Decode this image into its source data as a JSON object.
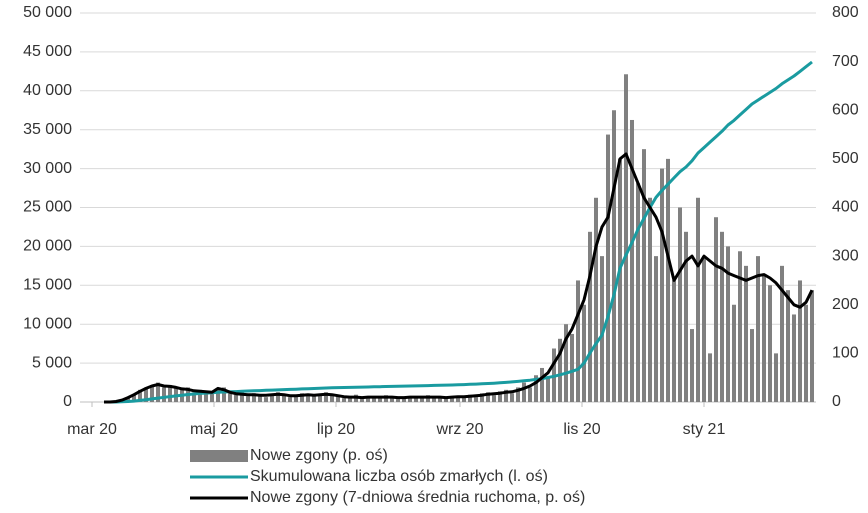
{
  "chart_data": {
    "type": "combo",
    "x": [
      6,
      9,
      12,
      15,
      18,
      21,
      24,
      27,
      30,
      33,
      36,
      39,
      42,
      45,
      48,
      51,
      54,
      57,
      60,
      63,
      66,
      69,
      72,
      75,
      78,
      81,
      84,
      87,
      90,
      93,
      96,
      99,
      102,
      105,
      108,
      111,
      114,
      117,
      120,
      123,
      126,
      129,
      132,
      135,
      138,
      141,
      144,
      147,
      150,
      153,
      156,
      159,
      162,
      165,
      168,
      171,
      174,
      177,
      180,
      183,
      186,
      189,
      192,
      195,
      198,
      201,
      204,
      207,
      210,
      213,
      216,
      219,
      222,
      225,
      228,
      231,
      234,
      237,
      240,
      243,
      246,
      249,
      252,
      255,
      258,
      261,
      264,
      267,
      270,
      273,
      276,
      279,
      282,
      285,
      288,
      291,
      294,
      297,
      300,
      303,
      306,
      309,
      312,
      315,
      318,
      321,
      324,
      327,
      330,
      333,
      336,
      339,
      342,
      345,
      348,
      351,
      354,
      357,
      360
    ],
    "xlim": [
      -6,
      362
    ],
    "xticks": [
      {
        "value": 0,
        "label": "mar 20"
      },
      {
        "value": 61,
        "label": "maj 20"
      },
      {
        "value": 122,
        "label": "lip 20"
      },
      {
        "value": 184,
        "label": "wrz 20"
      },
      {
        "value": 245,
        "label": "lis 20"
      },
      {
        "value": 306,
        "label": "sty 21"
      }
    ],
    "ylim": [
      0,
      50000
    ],
    "yticks": [
      0,
      {
        "value": 5000,
        "label": "5 000"
      },
      {
        "value": 10000,
        "label": "10 000"
      },
      {
        "value": 15000,
        "label": "15 000"
      },
      {
        "value": 20000,
        "label": "20 000"
      },
      {
        "value": 25000,
        "label": "25 000"
      },
      {
        "value": 30000,
        "label": "30 000"
      },
      {
        "value": 35000,
        "label": "35 000"
      },
      {
        "value": 40000,
        "label": "40 000"
      },
      {
        "value": 45000,
        "label": "45 000"
      },
      {
        "value": 50000,
        "label": "50 000"
      }
    ],
    "y2lim": [
      0,
      800
    ],
    "y2ticks": [
      0,
      100,
      200,
      300,
      400,
      500,
      600,
      700,
      800
    ],
    "grid": true,
    "series": [
      {
        "name": "Nowe zgony (p. oś)",
        "type": "bar",
        "axis": "y2",
        "color": "#808080",
        "values": [
          0,
          0,
          2,
          5,
          10,
          15,
          25,
          30,
          35,
          40,
          30,
          35,
          30,
          25,
          30,
          20,
          25,
          22,
          20,
          25,
          30,
          18,
          15,
          20,
          12,
          18,
          15,
          10,
          16,
          20,
          14,
          10,
          12,
          18,
          15,
          12,
          16,
          20,
          14,
          12,
          8,
          10,
          15,
          6,
          10,
          12,
          8,
          14,
          10,
          6,
          9,
          12,
          8,
          10,
          14,
          9,
          11,
          7,
          10,
          12,
          12,
          15,
          10,
          18,
          20,
          14,
          22,
          25,
          18,
          30,
          40,
          30,
          55,
          70,
          50,
          110,
          130,
          160,
          140,
          250,
          200,
          350,
          420,
          300,
          550,
          600,
          500,
          674,
          580,
          450,
          520,
          420,
          300,
          480,
          500,
          250,
          400,
          350,
          150,
          420,
          300,
          100,
          380,
          350,
          320,
          200,
          310,
          280,
          150,
          300,
          260,
          240,
          100,
          280,
          230,
          180,
          250,
          200,
          230
        ]
      },
      {
        "name": "Skumulowana liczba osób zmarłych (l. oś)",
        "type": "line",
        "axis": "y",
        "color": "#1a9ba0",
        "values": [
          0,
          0,
          5,
          20,
          60,
          120,
          200,
          300,
          400,
          500,
          600,
          700,
          790,
          880,
          960,
          1030,
          1100,
          1150,
          1200,
          1250,
          1280,
          1310,
          1340,
          1380,
          1410,
          1440,
          1470,
          1500,
          1530,
          1560,
          1590,
          1620,
          1650,
          1680,
          1710,
          1740,
          1770,
          1800,
          1830,
          1850,
          1860,
          1880,
          1900,
          1920,
          1930,
          1950,
          1970,
          1990,
          2000,
          2020,
          2040,
          2060,
          2070,
          2090,
          2110,
          2130,
          2150,
          2170,
          2190,
          2210,
          2240,
          2270,
          2300,
          2340,
          2380,
          2420,
          2470,
          2520,
          2580,
          2650,
          2720,
          2800,
          2900,
          3000,
          3150,
          3300,
          3500,
          3700,
          3950,
          4200,
          5000,
          6300,
          7500,
          8600,
          11000,
          13800,
          17200,
          18900,
          20500,
          22200,
          23600,
          25000,
          26300,
          27200,
          28000,
          28800,
          29600,
          30200,
          31000,
          32000,
          32700,
          33400,
          34100,
          34800,
          35600,
          36200,
          36900,
          37600,
          38300,
          38800,
          39300,
          39800,
          40300,
          40900,
          41400,
          41900,
          42500,
          43100,
          43700
        ]
      },
      {
        "name": "Nowe zgony (7-dniowa średnia ruchoma, p. oś)",
        "type": "line",
        "axis": "y2",
        "color": "#000000",
        "values": [
          0,
          0,
          1,
          4,
          9,
          15,
          22,
          28,
          33,
          36,
          33,
          32,
          30,
          27,
          26,
          23,
          22,
          21,
          20,
          28,
          25,
          20,
          17,
          16,
          15,
          15,
          14,
          14,
          15,
          16,
          15,
          13,
          13,
          14,
          15,
          14,
          15,
          16,
          15,
          13,
          11,
          10,
          10,
          9,
          10,
          10,
          10,
          10,
          10,
          9,
          9,
          10,
          10,
          10,
          10,
          10,
          10,
          9,
          10,
          11,
          11,
          12,
          13,
          14,
          16,
          17,
          18,
          20,
          21,
          24,
          28,
          33,
          40,
          50,
          60,
          80,
          100,
          130,
          150,
          180,
          210,
          260,
          320,
          360,
          380,
          440,
          500,
          510,
          480,
          450,
          420,
          400,
          380,
          350,
          300,
          250,
          270,
          290,
          300,
          280,
          300,
          290,
          280,
          275,
          265,
          260,
          255,
          250,
          255,
          260,
          262,
          255,
          245,
          230,
          215,
          200,
          195,
          205,
          230
        ]
      }
    ]
  }
}
